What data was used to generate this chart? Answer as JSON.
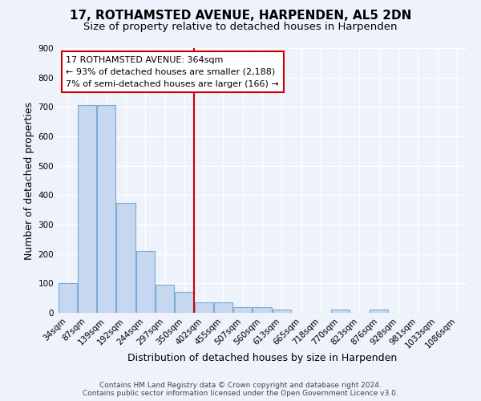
{
  "title": "17, ROTHAMSTED AVENUE, HARPENDEN, AL5 2DN",
  "subtitle": "Size of property relative to detached houses in Harpenden",
  "xlabel": "Distribution of detached houses by size in Harpenden",
  "ylabel": "Number of detached properties",
  "bar_labels": [
    "34sqm",
    "87sqm",
    "139sqm",
    "192sqm",
    "244sqm",
    "297sqm",
    "350sqm",
    "402sqm",
    "455sqm",
    "507sqm",
    "560sqm",
    "613sqm",
    "665sqm",
    "718sqm",
    "770sqm",
    "823sqm",
    "876sqm",
    "928sqm",
    "981sqm",
    "1033sqm",
    "1086sqm"
  ],
  "bar_values": [
    100,
    706,
    706,
    373,
    209,
    96,
    72,
    35,
    35,
    20,
    20,
    10,
    0,
    0,
    10,
    0,
    10,
    0,
    0,
    0,
    0
  ],
  "bar_color": "#c5d8f0",
  "bar_edge_color": "#7baad4",
  "vline_x": 6.5,
  "vline_color": "#cc0000",
  "annotation_text": "17 ROTHAMSTED AVENUE: 364sqm\n← 93% of detached houses are smaller (2,188)\n7% of semi-detached houses are larger (166) →",
  "annotation_box_facecolor": "#ffffff",
  "annotation_box_edgecolor": "#cc0000",
  "ylim": [
    0,
    900
  ],
  "yticks": [
    0,
    100,
    200,
    300,
    400,
    500,
    600,
    700,
    800,
    900
  ],
  "footer_line1": "Contains HM Land Registry data © Crown copyright and database right 2024.",
  "footer_line2": "Contains public sector information licensed under the Open Government Licence v3.0.",
  "background_color": "#eef2fb",
  "grid_color": "#ffffff",
  "title_fontsize": 11,
  "subtitle_fontsize": 9.5,
  "axis_label_fontsize": 9,
  "tick_fontsize": 7.5,
  "annot_fontsize": 8,
  "footer_fontsize": 6.5
}
